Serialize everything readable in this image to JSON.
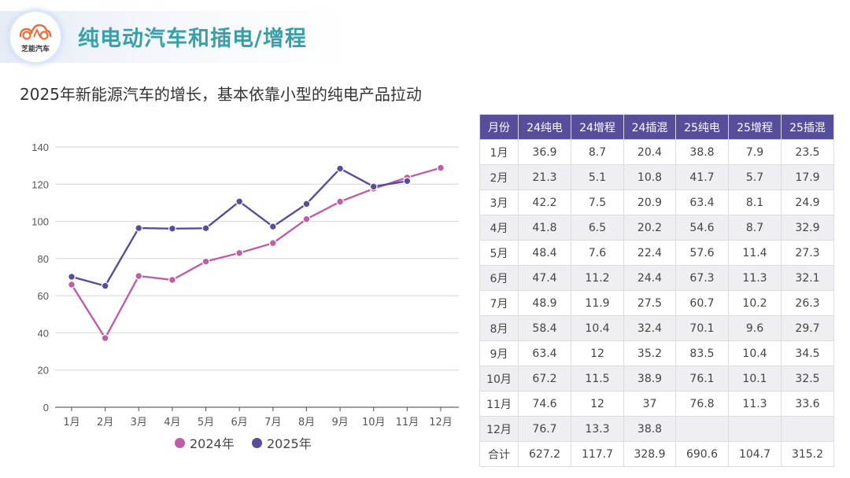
{
  "header": {
    "logo_text": "芝能汽车",
    "title": "纯电动汽车和插电/增程",
    "subtitle": "2025年新能源汽车的增长，基本依靠小型的纯电产品拉动"
  },
  "colors": {
    "title": "#3aa0a8",
    "series_2024": "#c05da6",
    "series_2025": "#564e9b",
    "table_header": "#564e9b"
  },
  "chart_data": {
    "type": "line",
    "categories": [
      "1月",
      "2月",
      "3月",
      "4月",
      "5月",
      "6月",
      "7月",
      "8月",
      "9月",
      "10月",
      "11月",
      "12月"
    ],
    "series": [
      {
        "name": "2024年",
        "values": [
          66.0,
          37.2,
          70.6,
          68.5,
          78.4,
          83.0,
          88.3,
          101.2,
          110.6,
          117.6,
          123.6,
          128.8
        ]
      },
      {
        "name": "2025年",
        "values": [
          70.2,
          65.3,
          96.4,
          96.1,
          96.3,
          110.7,
          97.2,
          109.4,
          128.4,
          118.7,
          121.7,
          null
        ]
      }
    ],
    "ylim": [
      0,
      140
    ],
    "yticks": [
      "0",
      "20",
      "40",
      "60",
      "80",
      "100",
      "120",
      "140"
    ],
    "grid": true,
    "legend": "bottom"
  },
  "table": {
    "headers": [
      "月份",
      "24纯电",
      "24增程",
      "24插混",
      "25纯电",
      "25增程",
      "25插混"
    ],
    "rows": [
      [
        "1月",
        "36.9",
        "8.7",
        "20.4",
        "38.8",
        "7.9",
        "23.5"
      ],
      [
        "2月",
        "21.3",
        "5.1",
        "10.8",
        "41.7",
        "5.7",
        "17.9"
      ],
      [
        "3月",
        "42.2",
        "7.5",
        "20.9",
        "63.4",
        "8.1",
        "24.9"
      ],
      [
        "4月",
        "41.8",
        "6.5",
        "20.2",
        "54.6",
        "8.7",
        "32.9"
      ],
      [
        "5月",
        "48.4",
        "7.6",
        "22.4",
        "57.6",
        "11.4",
        "27.3"
      ],
      [
        "6月",
        "47.4",
        "11.2",
        "24.4",
        "67.3",
        "11.3",
        "32.1"
      ],
      [
        "7月",
        "48.9",
        "11.9",
        "27.5",
        "60.7",
        "10.2",
        "26.3"
      ],
      [
        "8月",
        "58.4",
        "10.4",
        "32.4",
        "70.1",
        "9.6",
        "29.7"
      ],
      [
        "9月",
        "63.4",
        "12",
        "35.2",
        "83.5",
        "10.4",
        "34.5"
      ],
      [
        "10月",
        "67.2",
        "11.5",
        "38.9",
        "76.1",
        "10.1",
        "32.5"
      ],
      [
        "11月",
        "74.6",
        "12",
        "37",
        "76.8",
        "11.3",
        "33.6"
      ],
      [
        "12月",
        "76.7",
        "13.3",
        "38.8",
        "",
        "",
        ""
      ],
      [
        "合计",
        "627.2",
        "117.7",
        "328.9",
        "690.6",
        "104.7",
        "315.2"
      ]
    ]
  }
}
